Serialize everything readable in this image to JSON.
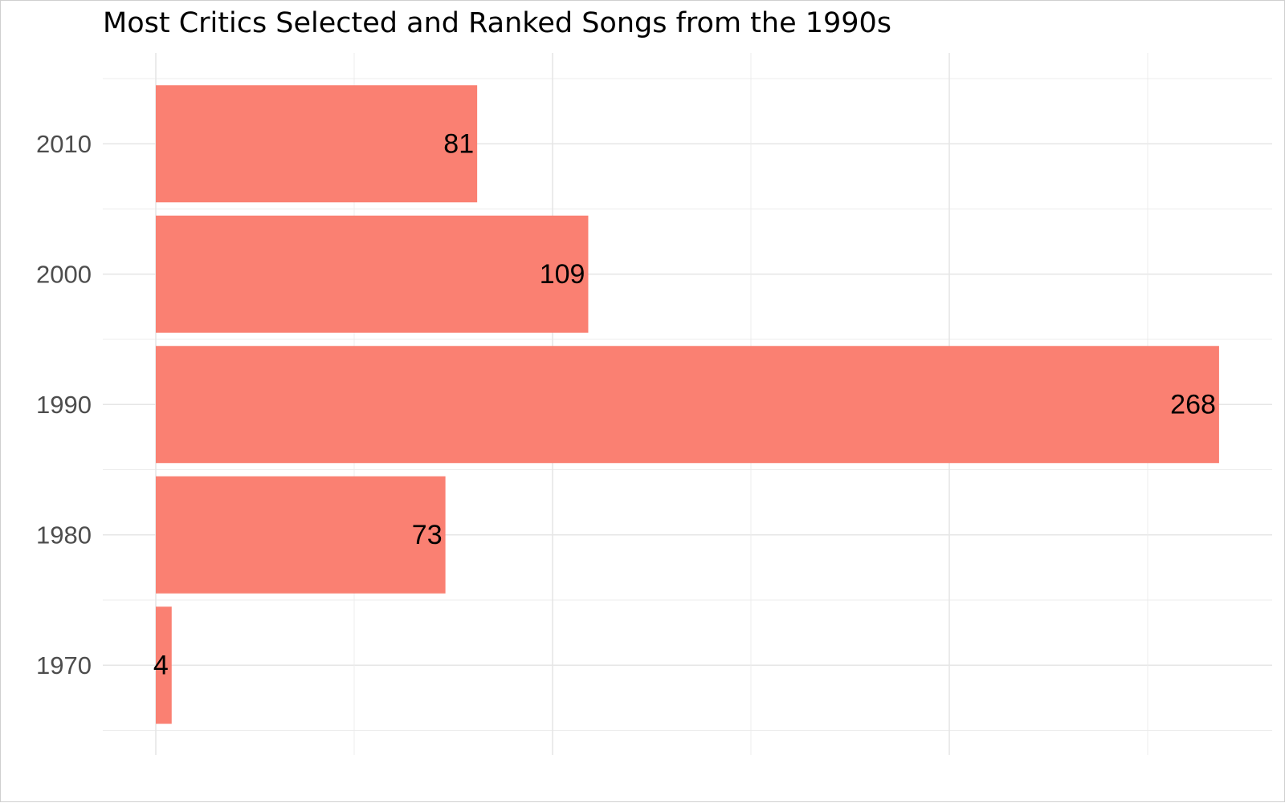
{
  "chart_data": {
    "type": "bar",
    "orientation": "horizontal",
    "title": "Most Critics Selected and Ranked Songs from the 1990s",
    "xlabel": "",
    "ylabel": "",
    "categories": [
      "1970",
      "1980",
      "1990",
      "2000",
      "2010"
    ],
    "values": [
      4,
      73,
      268,
      109,
      81
    ],
    "data_labels": [
      "4",
      "73",
      "268",
      "109",
      "81"
    ],
    "xlim": [
      0,
      280
    ],
    "x_tick_labels_shown": false,
    "grid": true,
    "legend": "none",
    "bar_color": "#FA8072"
  }
}
